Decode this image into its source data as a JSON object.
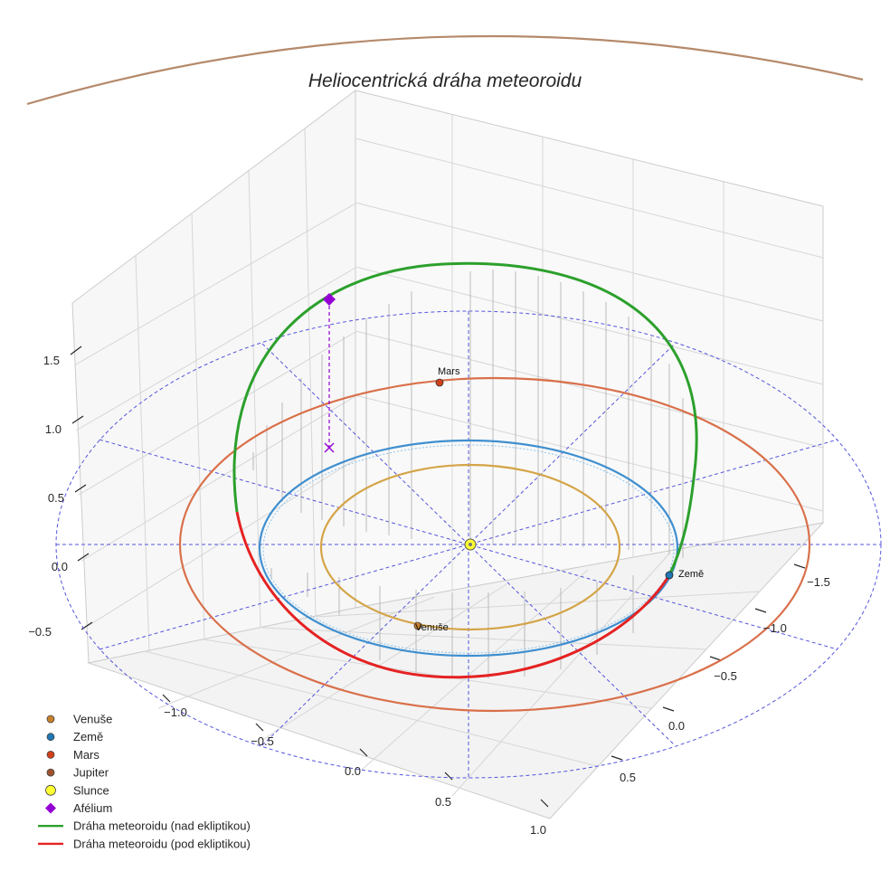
{
  "chart_data": {
    "type": "3d-line",
    "title": "Heliocentrická dráha meteoroidu",
    "x_ticks": [
      "−1.0",
      "−0.5",
      "0.0",
      "0.5",
      "1.0"
    ],
    "y_ticks": [
      "−1.5",
      "−1.0",
      "−0.5",
      "0.0",
      "0.5"
    ],
    "z_ticks": [
      "−0.5",
      "0.0",
      "0.5",
      "1.0",
      "1.5"
    ],
    "planets": [
      {
        "name": "Venuše",
        "orbit_radius_au": 0.72,
        "color": "#d4a447",
        "marker_color": "#c8802a"
      },
      {
        "name": "Země",
        "orbit_radius_au": 1.0,
        "color": "#3f8fcf",
        "marker_color": "#1f77b4"
      },
      {
        "name": "Mars",
        "orbit_radius_au": 1.52,
        "color": "#d9704a",
        "marker_color": "#d1401a"
      },
      {
        "name": "Jupiter",
        "orbit_radius_au": 5.2,
        "color": "#b5896a",
        "marker_color": "#a0522d"
      }
    ],
    "sun": {
      "name": "Slunce",
      "color": "#ffff33"
    },
    "aphelion": {
      "name": "Afélium",
      "color": "#9400d3"
    },
    "meteoroid": {
      "above_label": "Dráha meteoroidu (nad ekliptikou)",
      "below_label": "Dráha meteoroidu (pod ekliptikou)",
      "above_color": "#2ca02c",
      "below_color": "#e52222"
    },
    "point_labels": {
      "venus": "Venuše",
      "earth": "Země",
      "mars": "Mars"
    },
    "legend": [
      {
        "label": "Venuše",
        "marker": "circle",
        "color": "#c8802a"
      },
      {
        "label": "Země",
        "marker": "circle",
        "color": "#1f77b4"
      },
      {
        "label": "Mars",
        "marker": "circle",
        "color": "#d1401a"
      },
      {
        "label": "Jupiter",
        "marker": "circle",
        "color": "#a0522d"
      },
      {
        "label": "Slunce",
        "marker": "sun",
        "color": "#ffff33"
      },
      {
        "label": "Afélium",
        "marker": "diamond",
        "color": "#9400d3"
      },
      {
        "label": "Dráha meteoroidu (nad ekliptikou)",
        "marker": "line",
        "color": "#2ca02c"
      },
      {
        "label": "Dráha meteoroidu (pod ekliptikou)",
        "marker": "line",
        "color": "#e52222"
      }
    ]
  }
}
